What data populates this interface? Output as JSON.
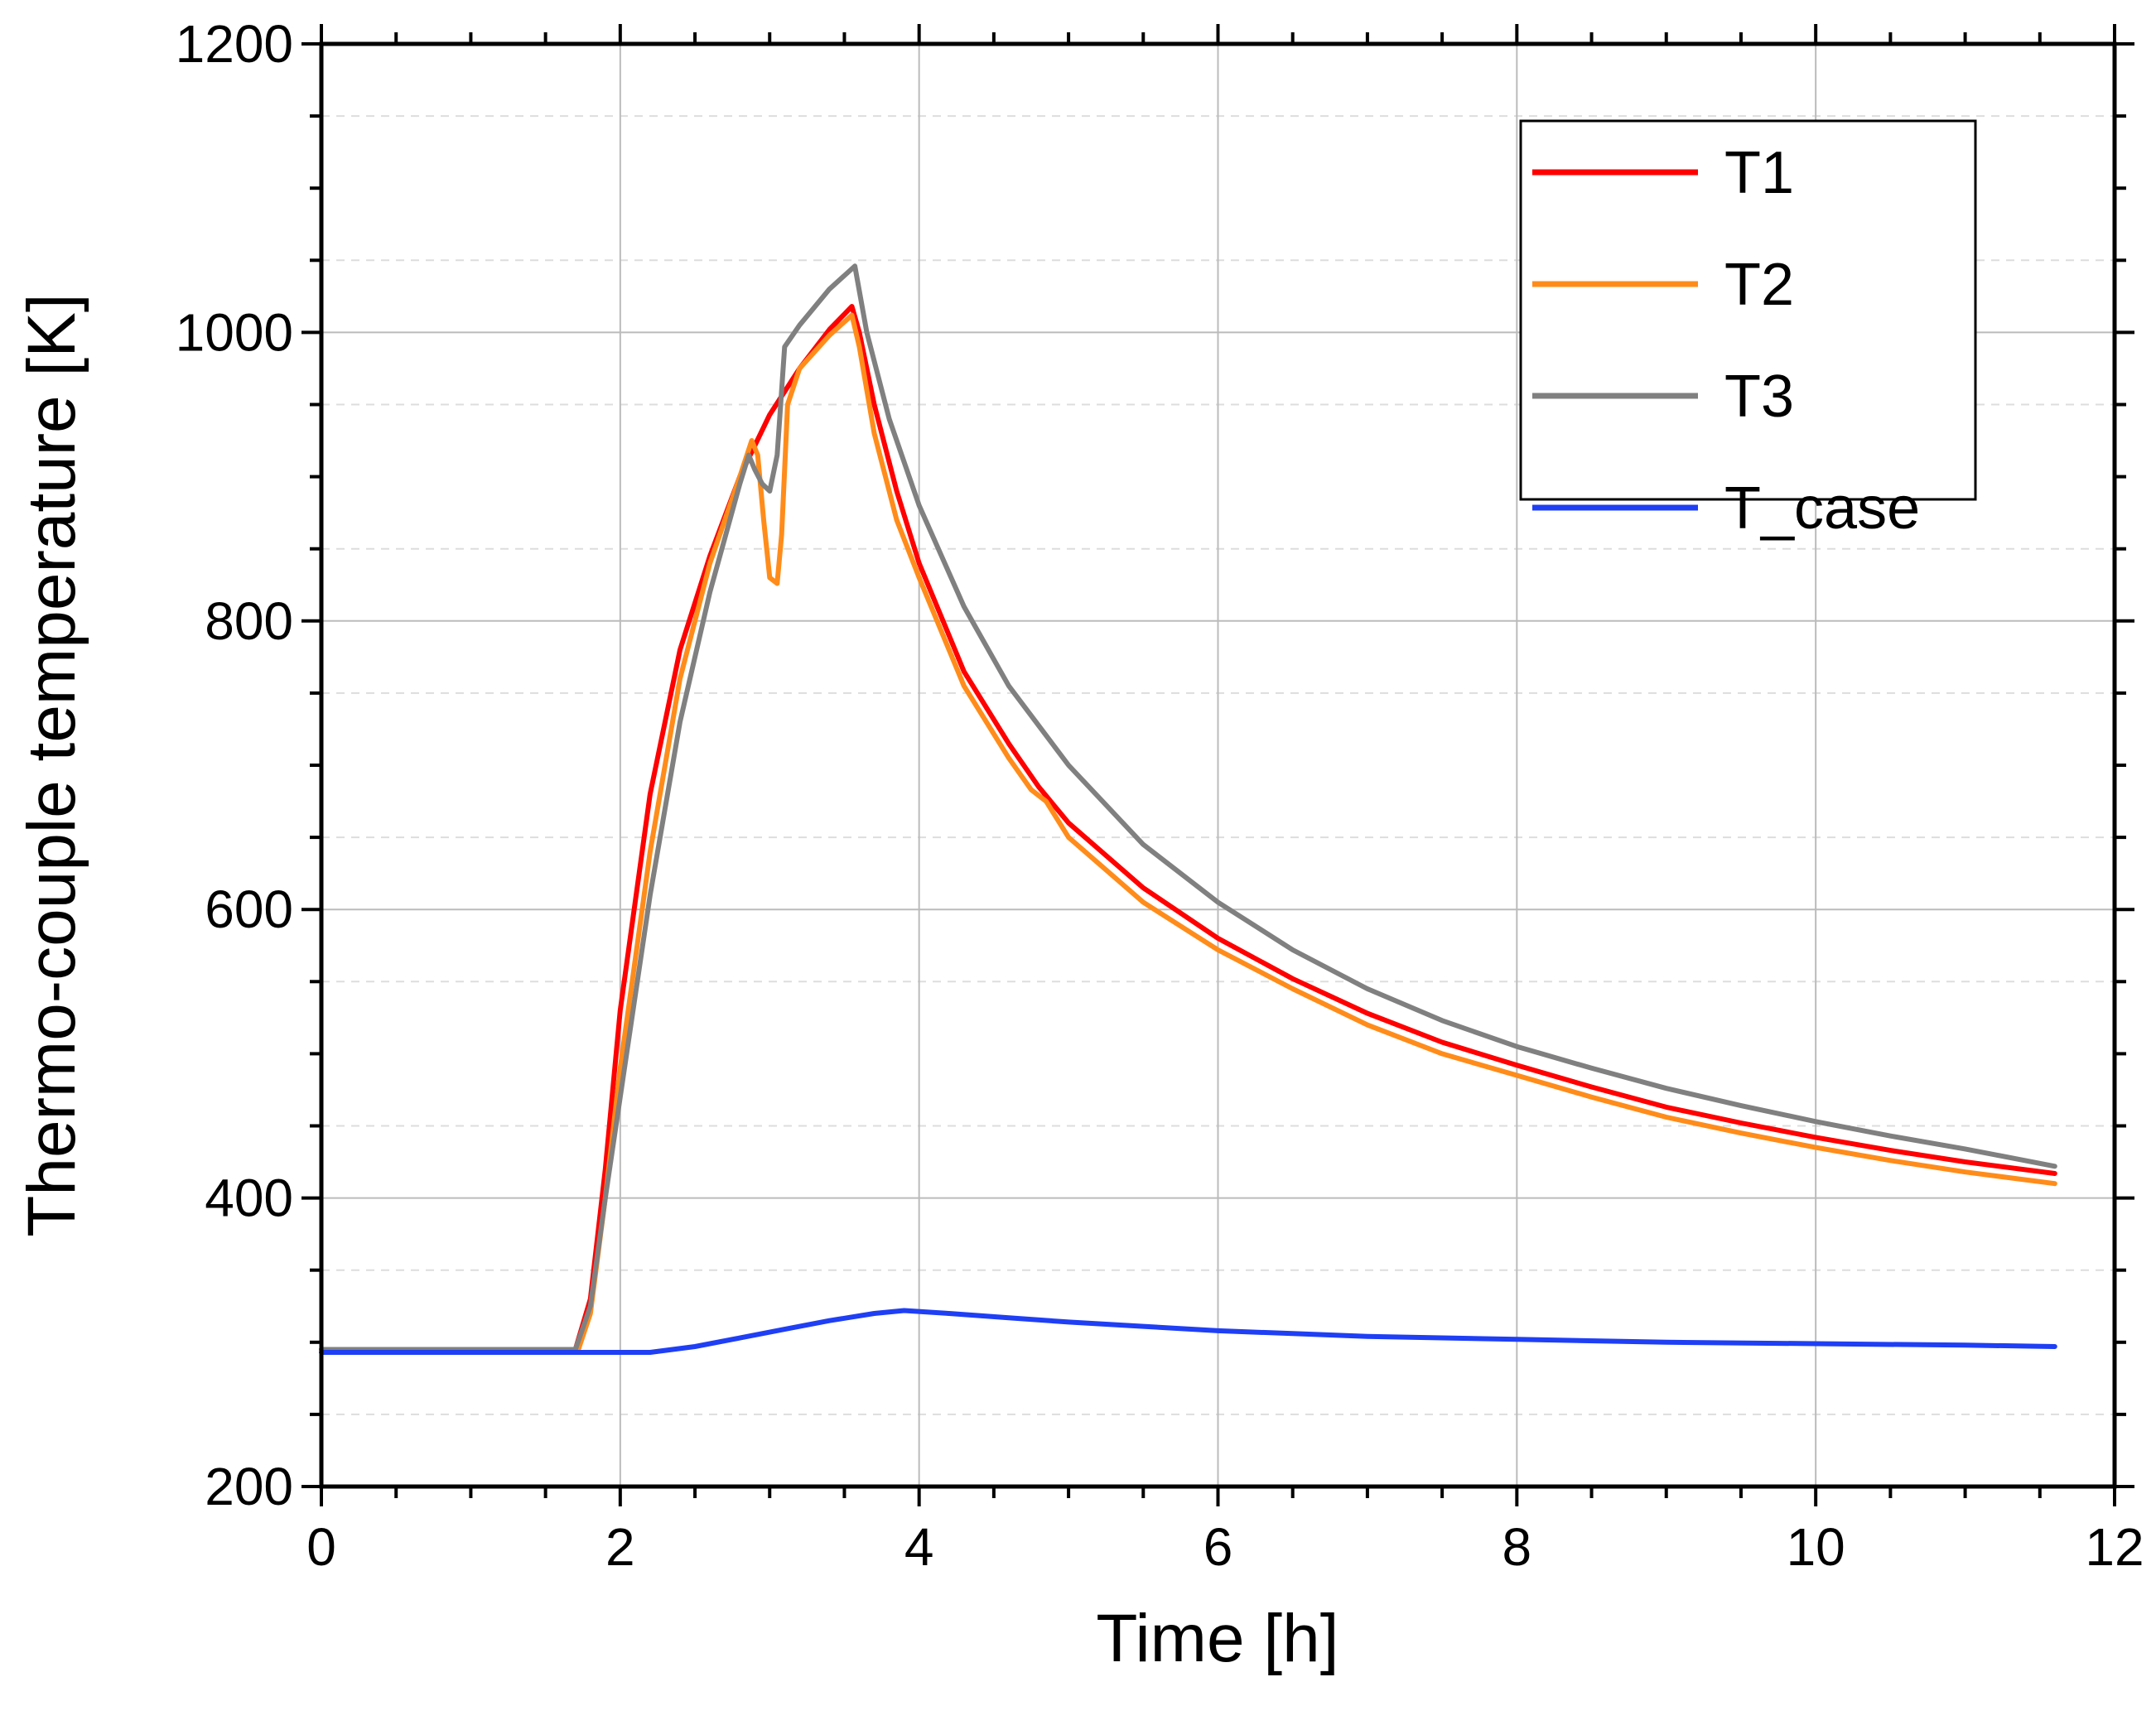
{
  "chart_data": {
    "type": "line",
    "title": "",
    "xlabel": "Time [h]",
    "ylabel": "Thermo-couple temperature [K]",
    "xlim": [
      0,
      12
    ],
    "ylim": [
      200,
      1200
    ],
    "xticks": [
      0,
      2,
      4,
      6,
      8,
      10,
      12
    ],
    "xtick_labels": [
      "0",
      "2",
      "4",
      "6",
      "8",
      "10",
      "12"
    ],
    "yticks": [
      200,
      400,
      600,
      800,
      1000,
      1200
    ],
    "ytick_labels": [
      "200",
      "400",
      "600",
      "800",
      "1000",
      "1200"
    ],
    "grid": true,
    "legend_position": "top-right",
    "series": [
      {
        "name": "T1",
        "color": "#ff0000",
        "points": [
          [
            0,
            295
          ],
          [
            1.7,
            295
          ],
          [
            1.8,
            330
          ],
          [
            1.9,
            420
          ],
          [
            2.0,
            530
          ],
          [
            2.2,
            680
          ],
          [
            2.4,
            780
          ],
          [
            2.6,
            845
          ],
          [
            2.8,
            900
          ],
          [
            3.0,
            943
          ],
          [
            3.2,
            975
          ],
          [
            3.4,
            1002
          ],
          [
            3.55,
            1018
          ],
          [
            3.6,
            1000
          ],
          [
            3.7,
            950
          ],
          [
            3.85,
            890
          ],
          [
            4.0,
            840
          ],
          [
            4.3,
            765
          ],
          [
            4.6,
            715
          ],
          [
            4.8,
            685
          ],
          [
            5.0,
            660
          ],
          [
            5.5,
            615
          ],
          [
            6.0,
            580
          ],
          [
            6.5,
            552
          ],
          [
            7.0,
            528
          ],
          [
            7.5,
            508
          ],
          [
            8.0,
            492
          ],
          [
            8.5,
            477
          ],
          [
            9.0,
            463
          ],
          [
            9.5,
            452
          ],
          [
            10.0,
            442
          ],
          [
            10.5,
            433
          ],
          [
            11.0,
            425
          ],
          [
            11.6,
            417
          ]
        ]
      },
      {
        "name": "T2",
        "color": "#ff8c1a",
        "points": [
          [
            0,
            295
          ],
          [
            1.72,
            295
          ],
          [
            1.8,
            320
          ],
          [
            1.9,
            400
          ],
          [
            2.0,
            490
          ],
          [
            2.2,
            640
          ],
          [
            2.4,
            760
          ],
          [
            2.6,
            840
          ],
          [
            2.8,
            900
          ],
          [
            2.88,
            925
          ],
          [
            2.92,
            915
          ],
          [
            2.96,
            870
          ],
          [
            3.0,
            830
          ],
          [
            3.05,
            826
          ],
          [
            3.08,
            860
          ],
          [
            3.12,
            950
          ],
          [
            3.2,
            975
          ],
          [
            3.4,
            998
          ],
          [
            3.55,
            1012
          ],
          [
            3.6,
            990
          ],
          [
            3.7,
            930
          ],
          [
            3.85,
            870
          ],
          [
            4.0,
            830
          ],
          [
            4.3,
            755
          ],
          [
            4.6,
            705
          ],
          [
            4.75,
            683
          ],
          [
            4.85,
            675
          ],
          [
            5.0,
            650
          ],
          [
            5.5,
            605
          ],
          [
            6.0,
            572
          ],
          [
            6.5,
            545
          ],
          [
            7.0,
            520
          ],
          [
            7.5,
            500
          ],
          [
            8.0,
            485
          ],
          [
            8.5,
            470
          ],
          [
            9.0,
            456
          ],
          [
            9.5,
            445
          ],
          [
            10.0,
            435
          ],
          [
            10.5,
            426
          ],
          [
            11.0,
            418
          ],
          [
            11.6,
            410
          ]
        ]
      },
      {
        "name": "T3",
        "color": "#808080",
        "points": [
          [
            0,
            295
          ],
          [
            1.7,
            295
          ],
          [
            1.8,
            325
          ],
          [
            1.9,
            400
          ],
          [
            2.0,
            470
          ],
          [
            2.2,
            610
          ],
          [
            2.4,
            730
          ],
          [
            2.6,
            820
          ],
          [
            2.8,
            895
          ],
          [
            2.86,
            915
          ],
          [
            2.9,
            905
          ],
          [
            2.95,
            895
          ],
          [
            3.0,
            890
          ],
          [
            3.05,
            915
          ],
          [
            3.1,
            990
          ],
          [
            3.2,
            1005
          ],
          [
            3.4,
            1030
          ],
          [
            3.57,
            1046
          ],
          [
            3.65,
            1000
          ],
          [
            3.8,
            940
          ],
          [
            4.0,
            880
          ],
          [
            4.3,
            810
          ],
          [
            4.6,
            755
          ],
          [
            5.0,
            700
          ],
          [
            5.5,
            645
          ],
          [
            6.0,
            605
          ],
          [
            6.5,
            572
          ],
          [
            7.0,
            545
          ],
          [
            7.5,
            523
          ],
          [
            8.0,
            505
          ],
          [
            8.5,
            490
          ],
          [
            9.0,
            476
          ],
          [
            9.5,
            464
          ],
          [
            10.0,
            453
          ],
          [
            10.5,
            443
          ],
          [
            11.0,
            434
          ],
          [
            11.6,
            422
          ]
        ]
      },
      {
        "name": "T_case",
        "color": "#1f3ff5",
        "points": [
          [
            0,
            293
          ],
          [
            2.2,
            293
          ],
          [
            2.5,
            297
          ],
          [
            2.8,
            303
          ],
          [
            3.1,
            309
          ],
          [
            3.4,
            315
          ],
          [
            3.7,
            320
          ],
          [
            3.9,
            322
          ],
          [
            4.2,
            320
          ],
          [
            4.6,
            317
          ],
          [
            5.0,
            314
          ],
          [
            5.5,
            311
          ],
          [
            6.0,
            308
          ],
          [
            6.5,
            306
          ],
          [
            7.0,
            304
          ],
          [
            8.0,
            302
          ],
          [
            9.0,
            300
          ],
          [
            10.0,
            299
          ],
          [
            11.0,
            298
          ],
          [
            11.6,
            297
          ]
        ]
      }
    ]
  }
}
